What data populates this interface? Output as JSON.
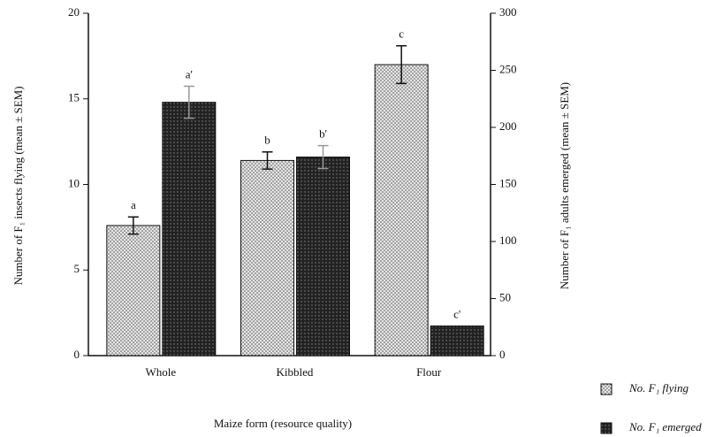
{
  "chart_data": {
    "type": "bar",
    "xlabel": "Maize form (resource quality)",
    "ylabel": "Number of F₁ insects flying (mean ± SEM)",
    "y2label": "Number of F₁ adults emerged (mean ± SEM)",
    "categories": [
      "Whole",
      "Kibbled",
      "Flour"
    ],
    "series": [
      {
        "name": "No. F₁ flying",
        "color": "#d8d8d8",
        "values": [
          7.6,
          11.4,
          17.0
        ],
        "errors": [
          0.5,
          0.5,
          1.1
        ],
        "labels": [
          "a",
          "b",
          "c"
        ]
      },
      {
        "name": "No. F₁ emerged",
        "color": "#333333",
        "axis": "y2",
        "values": [
          222,
          174,
          26
        ],
        "errors": [
          14,
          10,
          0
        ],
        "labels": [
          "a'",
          "b'",
          "c'"
        ]
      }
    ],
    "ylim": [
      0,
      20
    ],
    "yticks": [
      0,
      5,
      10,
      15,
      20
    ],
    "y2lim": [
      0,
      300
    ],
    "y2ticks": [
      0,
      50,
      100,
      150,
      200,
      250,
      300
    ],
    "legend": "bottom-right"
  }
}
